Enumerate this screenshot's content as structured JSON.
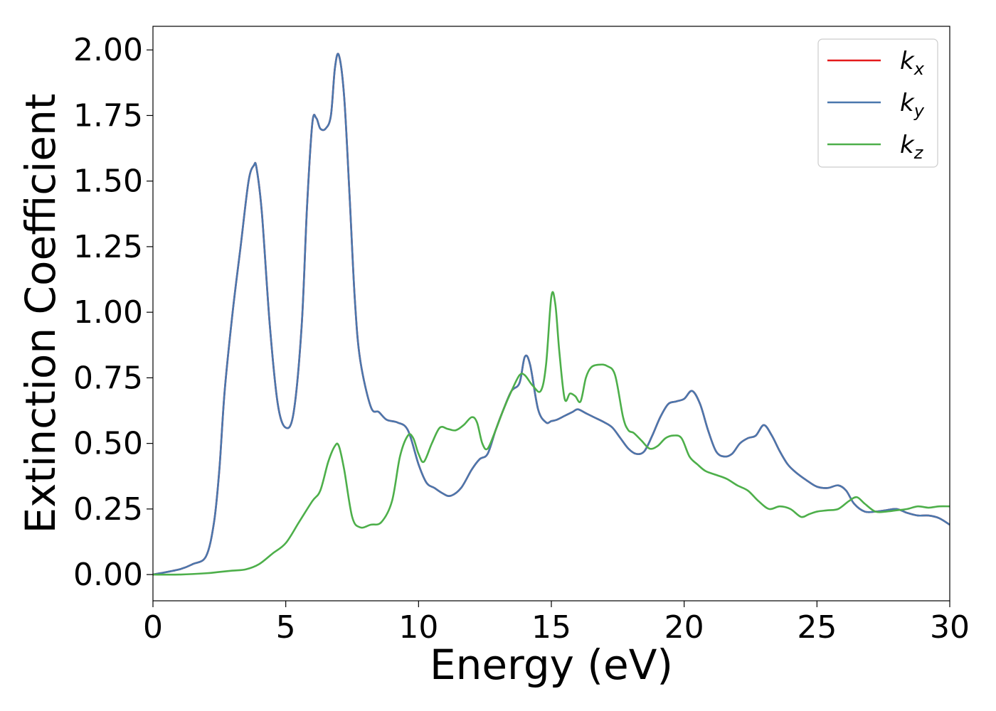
{
  "chart_data": {
    "type": "line",
    "xlabel": "Energy (eV)",
    "ylabel": "Extinction Coefficient",
    "xlim": [
      0,
      30
    ],
    "ylim": [
      -0.1,
      2.09
    ],
    "xticks": [
      0,
      5,
      10,
      15,
      20,
      25,
      30
    ],
    "yticks": [
      0.0,
      0.25,
      0.5,
      0.75,
      1.0,
      1.25,
      1.5,
      1.75,
      2.0
    ],
    "xtick_labels": [
      "0",
      "5",
      "10",
      "15",
      "20",
      "25",
      "30"
    ],
    "ytick_labels": [
      "0.00",
      "0.25",
      "0.50",
      "0.75",
      "1.00",
      "1.25",
      "1.50",
      "1.75",
      "2.00"
    ],
    "grid": false,
    "legend_position": "top-right",
    "series": [
      {
        "name": "k_x",
        "label_base": "k",
        "label_sub": "x",
        "color": "#e41a1c",
        "x": [
          0,
          1,
          1.5,
          2,
          2.3,
          2.5,
          2.7,
          3,
          3.3,
          3.6,
          3.8,
          3.9,
          4.1,
          4.4,
          4.7,
          5.0,
          5.3,
          5.6,
          5.8,
          6.0,
          6.15,
          6.3,
          6.5,
          6.7,
          6.85,
          7.0,
          7.2,
          7.4,
          7.6,
          7.8,
          8.2,
          8.5,
          8.8,
          9.2,
          9.6,
          10.0,
          10.3,
          10.6,
          10.9,
          11.2,
          11.6,
          12.0,
          12.3,
          12.6,
          12.9,
          13.2,
          13.5,
          13.8,
          14.0,
          14.2,
          14.5,
          14.8,
          15.0,
          15.2,
          15.5,
          15.8,
          16.0,
          16.3,
          16.6,
          17.0,
          17.3,
          17.6,
          17.9,
          18.2,
          18.5,
          18.8,
          19.1,
          19.4,
          19.7,
          20.0,
          20.3,
          20.6,
          20.9,
          21.2,
          21.5,
          21.8,
          22.1,
          22.4,
          22.7,
          23.0,
          23.3,
          23.6,
          23.9,
          24.2,
          24.6,
          25.0,
          25.4,
          25.8,
          26.1,
          26.4,
          26.8,
          27.2,
          27.6,
          28.0,
          28.4,
          28.8,
          29.2,
          29.6,
          30.0
        ],
        "y": [
          0,
          0.02,
          0.04,
          0.07,
          0.2,
          0.4,
          0.7,
          1.0,
          1.25,
          1.5,
          1.56,
          1.55,
          1.38,
          0.95,
          0.65,
          0.56,
          0.62,
          0.95,
          1.4,
          1.72,
          1.74,
          1.7,
          1.7,
          1.75,
          1.93,
          1.98,
          1.82,
          1.45,
          1.05,
          0.82,
          0.64,
          0.62,
          0.59,
          0.58,
          0.55,
          0.42,
          0.35,
          0.33,
          0.31,
          0.3,
          0.33,
          0.4,
          0.44,
          0.46,
          0.55,
          0.63,
          0.7,
          0.73,
          0.83,
          0.8,
          0.63,
          0.58,
          0.585,
          0.59,
          0.605,
          0.62,
          0.63,
          0.615,
          0.6,
          0.58,
          0.56,
          0.52,
          0.48,
          0.46,
          0.47,
          0.53,
          0.6,
          0.65,
          0.66,
          0.67,
          0.7,
          0.65,
          0.55,
          0.47,
          0.45,
          0.46,
          0.5,
          0.52,
          0.53,
          0.57,
          0.53,
          0.47,
          0.42,
          0.39,
          0.36,
          0.335,
          0.33,
          0.34,
          0.32,
          0.27,
          0.24,
          0.24,
          0.245,
          0.25,
          0.235,
          0.225,
          0.225,
          0.215,
          0.19
        ]
      },
      {
        "name": "k_y",
        "label_base": "k",
        "label_sub": "y",
        "color": "#4a77ad",
        "x": [
          0,
          1,
          1.5,
          2,
          2.3,
          2.5,
          2.7,
          3,
          3.3,
          3.6,
          3.8,
          3.9,
          4.1,
          4.4,
          4.7,
          5.0,
          5.3,
          5.6,
          5.8,
          6.0,
          6.15,
          6.3,
          6.5,
          6.7,
          6.85,
          7.0,
          7.2,
          7.4,
          7.6,
          7.8,
          8.2,
          8.5,
          8.8,
          9.2,
          9.6,
          10.0,
          10.3,
          10.6,
          10.9,
          11.2,
          11.6,
          12.0,
          12.3,
          12.6,
          12.9,
          13.2,
          13.5,
          13.8,
          14.0,
          14.2,
          14.5,
          14.8,
          15.0,
          15.2,
          15.5,
          15.8,
          16.0,
          16.3,
          16.6,
          17.0,
          17.3,
          17.6,
          17.9,
          18.2,
          18.5,
          18.8,
          19.1,
          19.4,
          19.7,
          20.0,
          20.3,
          20.6,
          20.9,
          21.2,
          21.5,
          21.8,
          22.1,
          22.4,
          22.7,
          23.0,
          23.3,
          23.6,
          23.9,
          24.2,
          24.6,
          25.0,
          25.4,
          25.8,
          26.1,
          26.4,
          26.8,
          27.2,
          27.6,
          28.0,
          28.4,
          28.8,
          29.2,
          29.6,
          30.0
        ],
        "y": [
          0,
          0.02,
          0.04,
          0.07,
          0.2,
          0.4,
          0.7,
          1.0,
          1.25,
          1.5,
          1.56,
          1.55,
          1.38,
          0.95,
          0.65,
          0.56,
          0.62,
          0.95,
          1.4,
          1.72,
          1.74,
          1.7,
          1.7,
          1.75,
          1.93,
          1.98,
          1.82,
          1.45,
          1.05,
          0.82,
          0.64,
          0.62,
          0.59,
          0.58,
          0.55,
          0.42,
          0.35,
          0.33,
          0.31,
          0.3,
          0.33,
          0.4,
          0.44,
          0.46,
          0.55,
          0.63,
          0.7,
          0.73,
          0.83,
          0.8,
          0.63,
          0.58,
          0.585,
          0.59,
          0.605,
          0.62,
          0.63,
          0.615,
          0.6,
          0.58,
          0.56,
          0.52,
          0.48,
          0.46,
          0.47,
          0.53,
          0.6,
          0.65,
          0.66,
          0.67,
          0.7,
          0.65,
          0.55,
          0.47,
          0.45,
          0.46,
          0.5,
          0.52,
          0.53,
          0.57,
          0.53,
          0.47,
          0.42,
          0.39,
          0.36,
          0.335,
          0.33,
          0.34,
          0.32,
          0.27,
          0.24,
          0.24,
          0.245,
          0.25,
          0.235,
          0.225,
          0.225,
          0.215,
          0.19
        ]
      },
      {
        "name": "k_z",
        "label_base": "k",
        "label_sub": "z",
        "color": "#4daf4a",
        "x": [
          0,
          1,
          2,
          2.5,
          3,
          3.5,
          4,
          4.5,
          5,
          5.5,
          6,
          6.3,
          6.6,
          6.85,
          7.0,
          7.2,
          7.5,
          7.8,
          8.2,
          8.6,
          9.0,
          9.3,
          9.6,
          9.8,
          10.0,
          10.2,
          10.5,
          10.8,
          11.1,
          11.4,
          11.7,
          12.0,
          12.2,
          12.4,
          12.6,
          12.9,
          13.2,
          13.5,
          13.8,
          14.0,
          14.3,
          14.6,
          14.8,
          15.0,
          15.15,
          15.3,
          15.5,
          15.7,
          15.9,
          16.1,
          16.3,
          16.5,
          16.8,
          17.1,
          17.4,
          17.7,
          17.9,
          18.1,
          18.4,
          18.7,
          19.0,
          19.3,
          19.6,
          19.9,
          20.2,
          20.5,
          20.8,
          21.2,
          21.6,
          22.0,
          22.4,
          22.8,
          23.2,
          23.6,
          24.0,
          24.4,
          24.7,
          25.0,
          25.4,
          25.8,
          26.2,
          26.5,
          26.8,
          27.2,
          27.6,
          28.0,
          28.4,
          28.8,
          29.2,
          29.6,
          30.0
        ],
        "y": [
          0,
          0,
          0.005,
          0.01,
          0.015,
          0.02,
          0.04,
          0.08,
          0.12,
          0.2,
          0.28,
          0.32,
          0.43,
          0.49,
          0.49,
          0.4,
          0.22,
          0.18,
          0.19,
          0.2,
          0.28,
          0.45,
          0.53,
          0.52,
          0.46,
          0.43,
          0.5,
          0.56,
          0.555,
          0.55,
          0.57,
          0.6,
          0.58,
          0.5,
          0.48,
          0.55,
          0.63,
          0.7,
          0.76,
          0.76,
          0.72,
          0.7,
          0.8,
          1.06,
          1.03,
          0.85,
          0.67,
          0.69,
          0.68,
          0.66,
          0.75,
          0.79,
          0.8,
          0.795,
          0.76,
          0.6,
          0.55,
          0.54,
          0.51,
          0.48,
          0.49,
          0.52,
          0.53,
          0.52,
          0.45,
          0.42,
          0.395,
          0.38,
          0.365,
          0.34,
          0.32,
          0.28,
          0.25,
          0.26,
          0.25,
          0.22,
          0.23,
          0.24,
          0.245,
          0.25,
          0.28,
          0.295,
          0.27,
          0.24,
          0.24,
          0.245,
          0.25,
          0.26,
          0.255,
          0.26,
          0.26
        ]
      }
    ]
  }
}
